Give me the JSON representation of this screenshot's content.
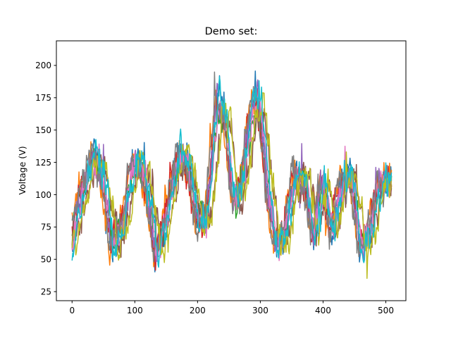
{
  "chart_data": {
    "type": "line",
    "title": "Demo set:",
    "xlabel": "",
    "ylabel": "Voltage (V)",
    "xlim": [
      -25,
      532
    ],
    "ylim": [
      18,
      219
    ],
    "xticks": [
      0,
      100,
      200,
      300,
      400,
      500
    ],
    "yticks": [
      25,
      50,
      75,
      100,
      125,
      150,
      175,
      200
    ],
    "grid": false,
    "legend": "none",
    "points_per_series": 510,
    "envelope": {
      "x": [
        0,
        15,
        35,
        50,
        65,
        80,
        100,
        115,
        135,
        150,
        170,
        185,
        200,
        215,
        232,
        245,
        258,
        272,
        285,
        298,
        312,
        325,
        340,
        355,
        372,
        385,
        400,
        415,
        430,
        445,
        460,
        475,
        490,
        508
      ],
      "y": [
        62,
        100,
        130,
        115,
        60,
        75,
        125,
        120,
        55,
        80,
        130,
        125,
        80,
        80,
        170,
        160,
        95,
        110,
        160,
        175,
        110,
        60,
        70,
        115,
        110,
        70,
        110,
        70,
        110,
        115,
        62,
        70,
        110,
        112
      ]
    },
    "series": [
      {
        "color": "#1f77b4"
      },
      {
        "color": "#ff7f0e"
      },
      {
        "color": "#2ca02c"
      },
      {
        "color": "#d62728"
      },
      {
        "color": "#9467bd"
      },
      {
        "color": "#8c564b"
      },
      {
        "color": "#e377c2"
      },
      {
        "color": "#7f7f7f"
      },
      {
        "color": "#bcbd22"
      },
      {
        "color": "#17becf"
      }
    ]
  }
}
